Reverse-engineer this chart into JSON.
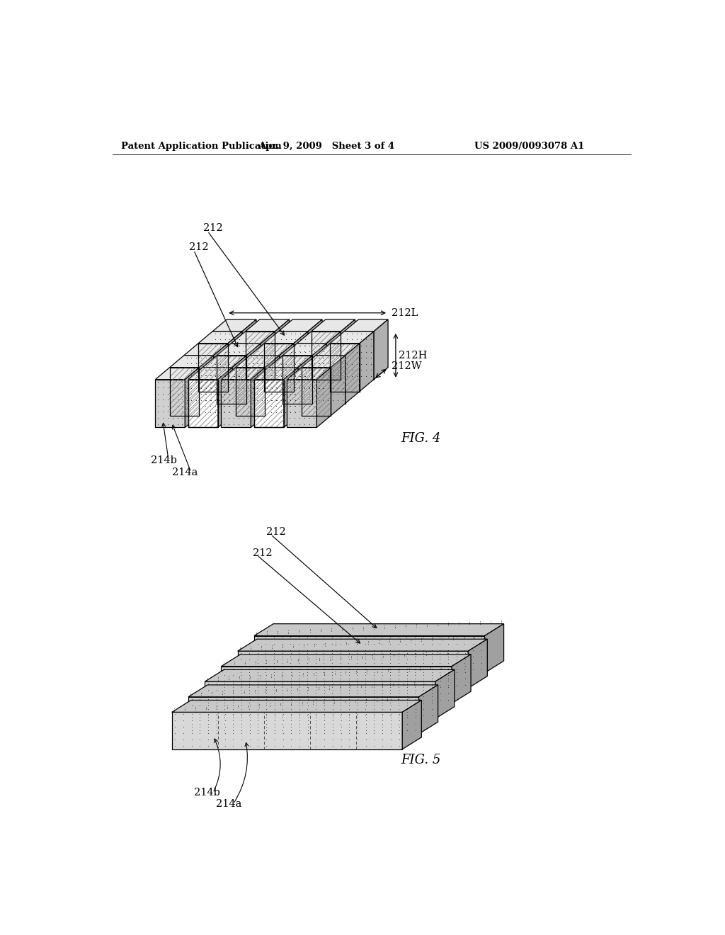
{
  "header_left": "Patent Application Publication",
  "header_center": "Apr. 9, 2009   Sheet 3 of 4",
  "header_right": "US 2009/0093078 A1",
  "fig4_label": "FIG. 4",
  "fig5_label": "FIG. 5",
  "label_212L": "212L",
  "label_212H": "212H",
  "label_212W": "212W",
  "label_212": "212",
  "label_214a": "214a",
  "label_214b": "214b",
  "bg_color": "#ffffff",
  "line_color": "#000000"
}
